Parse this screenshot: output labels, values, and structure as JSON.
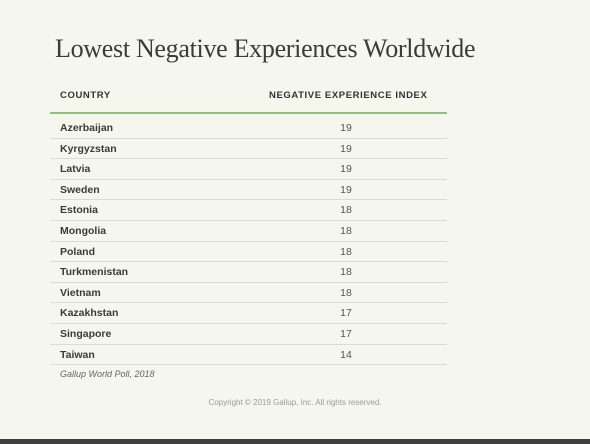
{
  "title": "Lowest Negative Experiences Worldwide",
  "table": {
    "headers": {
      "country": "COUNTRY",
      "index": "NEGATIVE EXPERIENCE INDEX"
    },
    "rows": [
      {
        "country": "Azerbaijan",
        "value": "19"
      },
      {
        "country": "Kyrgyzstan",
        "value": "19"
      },
      {
        "country": "Latvia",
        "value": "19"
      },
      {
        "country": "Sweden",
        "value": "19"
      },
      {
        "country": "Estonia",
        "value": "18"
      },
      {
        "country": "Mongolia",
        "value": "18"
      },
      {
        "country": "Poland",
        "value": "18"
      },
      {
        "country": "Turkmenistan",
        "value": "18"
      },
      {
        "country": "Vietnam",
        "value": "18"
      },
      {
        "country": "Kazakhstan",
        "value": "17"
      },
      {
        "country": "Singapore",
        "value": "17"
      },
      {
        "country": "Taiwan",
        "value": "14"
      }
    ]
  },
  "source": "Gallup World Poll, 2018",
  "copyright": "Copyright © 2019 Gallup, Inc. All rights reserved.",
  "colors": {
    "background": "#f5f6ee",
    "header_rule": "#8dc27a",
    "row_rule": "#d9dcd0"
  }
}
